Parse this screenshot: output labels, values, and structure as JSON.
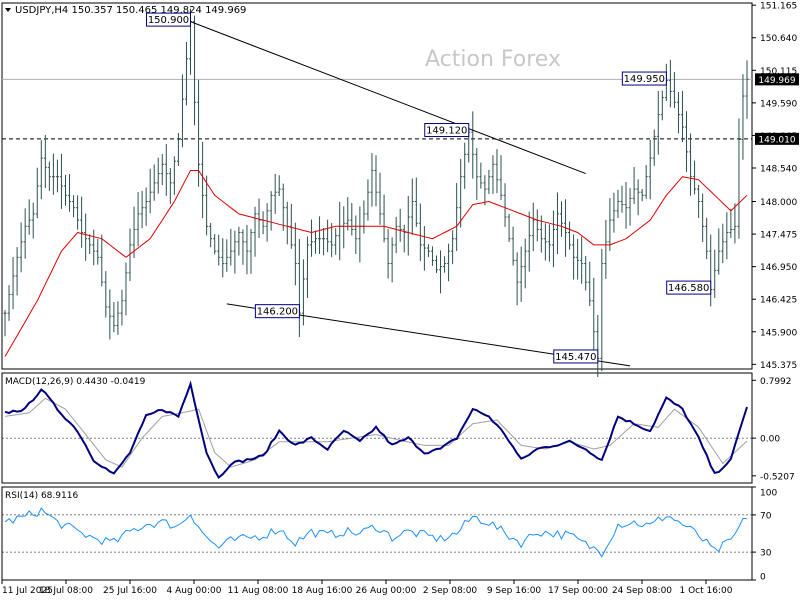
{
  "chart_data": [
    {
      "type": "line",
      "panel": "price",
      "title": "USDJPY,H4 150.357 150.465 149.824 149.969",
      "watermark": "Action Forex",
      "y_ticks": [
        "151.165",
        "150.640",
        "150.115",
        "149.590",
        "149.065",
        "148.540",
        "148.000",
        "147.475",
        "146.950",
        "146.425",
        "145.900",
        "145.375"
      ],
      "ylim": [
        145.3,
        151.2
      ],
      "current_price": "149.969",
      "reference_level": "149.010",
      "annotations": [
        {
          "label": "150.900",
          "index": 46,
          "value": 150.9
        },
        {
          "label": "149.120",
          "index": 115,
          "value": 149.12
        },
        {
          "label": "149.950",
          "index": 164,
          "value": 149.95
        },
        {
          "label": "146.200",
          "index": 73,
          "value": 146.2
        },
        {
          "label": "145.470",
          "index": 147,
          "value": 145.47
        },
        {
          "label": "146.580",
          "index": 175,
          "value": 146.58
        }
      ],
      "trendlines": [
        {
          "from": [
            46,
            150.9
          ],
          "to": [
            144,
            148.45
          ]
        },
        {
          "from": [
            55,
            146.35
          ],
          "to": [
            155,
            145.35
          ]
        }
      ],
      "series": [
        {
          "role": "price",
          "color": "#2f4f4f"
        },
        {
          "role": "moving_average",
          "color": "#e00000"
        }
      ],
      "anchors": [
        [
          0,
          146.2
        ],
        [
          3,
          147.1
        ],
        [
          5,
          147.6
        ],
        [
          7,
          147.8
        ],
        [
          9,
          148.7
        ],
        [
          11,
          148.4
        ],
        [
          13,
          148.4
        ],
        [
          15,
          148.1
        ],
        [
          17,
          147.9
        ],
        [
          19,
          147.5
        ],
        [
          21,
          147.3
        ],
        [
          23,
          147.1
        ],
        [
          25,
          146.3
        ],
        [
          27,
          146.0
        ],
        [
          29,
          146.4
        ],
        [
          31,
          147.3
        ],
        [
          33,
          147.8
        ],
        [
          35,
          148.0
        ],
        [
          37,
          148.3
        ],
        [
          39,
          148.6
        ],
        [
          41,
          148.3
        ],
        [
          43,
          149.0
        ],
        [
          45,
          150.3
        ],
        [
          46,
          150.9
        ],
        [
          47,
          149.6
        ],
        [
          48,
          148.6
        ],
        [
          50,
          147.6
        ],
        [
          52,
          147.2
        ],
        [
          54,
          147.0
        ],
        [
          56,
          147.2
        ],
        [
          58,
          147.5
        ],
        [
          60,
          147.2
        ],
        [
          62,
          147.8
        ],
        [
          64,
          147.6
        ],
        [
          66,
          148.1
        ],
        [
          68,
          148.2
        ],
        [
          70,
          147.6
        ],
        [
          72,
          147.0
        ],
        [
          73,
          146.2
        ],
        [
          75,
          147.3
        ],
        [
          77,
          147.4
        ],
        [
          79,
          147.4
        ],
        [
          81,
          147.3
        ],
        [
          83,
          147.6
        ],
        [
          85,
          147.7
        ],
        [
          87,
          147.4
        ],
        [
          89,
          147.8
        ],
        [
          91,
          148.5
        ],
        [
          93,
          147.8
        ],
        [
          95,
          147.0
        ],
        [
          97,
          147.6
        ],
        [
          99,
          147.5
        ],
        [
          101,
          148.0
        ],
        [
          103,
          147.3
        ],
        [
          105,
          147.2
        ],
        [
          107,
          146.9
        ],
        [
          109,
          147.0
        ],
        [
          111,
          147.4
        ],
        [
          113,
          148.4
        ],
        [
          115,
          149.12
        ],
        [
          117,
          148.4
        ],
        [
          119,
          148.2
        ],
        [
          121,
          148.6
        ],
        [
          123,
          148.1
        ],
        [
          125,
          147.4
        ],
        [
          127,
          146.7
        ],
        [
          129,
          147.2
        ],
        [
          131,
          147.7
        ],
        [
          133,
          147.4
        ],
        [
          135,
          147.3
        ],
        [
          137,
          147.8
        ],
        [
          139,
          147.5
        ],
        [
          141,
          147.1
        ],
        [
          143,
          147.0
        ],
        [
          145,
          146.4
        ],
        [
          146,
          145.9
        ],
        [
          147,
          145.47
        ],
        [
          148,
          147.0
        ],
        [
          150,
          147.7
        ],
        [
          152,
          148.0
        ],
        [
          154,
          147.9
        ],
        [
          156,
          148.2
        ],
        [
          158,
          148.1
        ],
        [
          160,
          148.7
        ],
        [
          162,
          149.4
        ],
        [
          164,
          149.95
        ],
        [
          166,
          149.6
        ],
        [
          168,
          149.2
        ],
        [
          170,
          148.4
        ],
        [
          172,
          148.0
        ],
        [
          174,
          147.2
        ],
        [
          175,
          146.58
        ],
        [
          177,
          147.2
        ],
        [
          179,
          147.5
        ],
        [
          181,
          147.6
        ],
        [
          182,
          149.0
        ],
        [
          183,
          149.7
        ],
        [
          184,
          149.97
        ]
      ],
      "ma_anchors": [
        [
          0,
          145.5
        ],
        [
          8,
          146.4
        ],
        [
          14,
          147.2
        ],
        [
          18,
          147.5
        ],
        [
          24,
          147.4
        ],
        [
          30,
          147.1
        ],
        [
          36,
          147.4
        ],
        [
          42,
          148.0
        ],
        [
          46,
          148.5
        ],
        [
          48,
          148.5
        ],
        [
          52,
          148.1
        ],
        [
          58,
          147.8
        ],
        [
          64,
          147.7
        ],
        [
          70,
          147.6
        ],
        [
          76,
          147.5
        ],
        [
          82,
          147.6
        ],
        [
          88,
          147.6
        ],
        [
          94,
          147.6
        ],
        [
          100,
          147.5
        ],
        [
          106,
          147.4
        ],
        [
          112,
          147.6
        ],
        [
          116,
          147.95
        ],
        [
          120,
          148.0
        ],
        [
          126,
          147.85
        ],
        [
          132,
          147.7
        ],
        [
          138,
          147.6
        ],
        [
          142,
          147.5
        ],
        [
          146,
          147.3
        ],
        [
          150,
          147.3
        ],
        [
          154,
          147.4
        ],
        [
          160,
          147.7
        ],
        [
          164,
          148.1
        ],
        [
          168,
          148.4
        ],
        [
          172,
          148.35
        ],
        [
          176,
          148.1
        ],
        [
          180,
          147.85
        ],
        [
          184,
          148.1
        ]
      ]
    },
    {
      "type": "line",
      "panel": "macd",
      "title": "MACD(12,26,9) 0.4430 -0.0419",
      "y_ticks": [
        "0.7992",
        "0.00",
        "-0.5207"
      ],
      "ylim": [
        -0.62,
        0.9
      ],
      "series": [
        {
          "role": "macd",
          "color": "#000080"
        },
        {
          "role": "signal",
          "color": "#a0a0a0"
        }
      ],
      "anchors": [
        [
          0,
          0.35
        ],
        [
          5,
          0.4
        ],
        [
          9,
          0.68
        ],
        [
          13,
          0.4
        ],
        [
          18,
          0.1
        ],
        [
          22,
          -0.3
        ],
        [
          27,
          -0.5
        ],
        [
          31,
          -0.2
        ],
        [
          35,
          0.3
        ],
        [
          39,
          0.4
        ],
        [
          43,
          0.3
        ],
        [
          46,
          0.75
        ],
        [
          50,
          -0.2
        ],
        [
          53,
          -0.55
        ],
        [
          56,
          -0.35
        ],
        [
          60,
          -0.3
        ],
        [
          64,
          -0.25
        ],
        [
          68,
          0.1
        ],
        [
          72,
          -0.1
        ],
        [
          76,
          0.0
        ],
        [
          80,
          -0.15
        ],
        [
          84,
          0.1
        ],
        [
          88,
          -0.05
        ],
        [
          92,
          0.15
        ],
        [
          96,
          -0.1
        ],
        [
          100,
          0.0
        ],
        [
          104,
          -0.2
        ],
        [
          108,
          -0.15
        ],
        [
          112,
          0.0
        ],
        [
          116,
          0.4
        ],
        [
          120,
          0.3
        ],
        [
          124,
          0.05
        ],
        [
          128,
          -0.3
        ],
        [
          132,
          -0.15
        ],
        [
          136,
          -0.1
        ],
        [
          140,
          -0.05
        ],
        [
          144,
          -0.15
        ],
        [
          148,
          -0.3
        ],
        [
          152,
          0.3
        ],
        [
          156,
          0.2
        ],
        [
          160,
          0.1
        ],
        [
          164,
          0.55
        ],
        [
          168,
          0.4
        ],
        [
          172,
          0.0
        ],
        [
          176,
          -0.5
        ],
        [
          180,
          -0.3
        ],
        [
          184,
          0.44
        ]
      ],
      "signal_anchors": [
        [
          0,
          0.3
        ],
        [
          6,
          0.35
        ],
        [
          10,
          0.55
        ],
        [
          15,
          0.4
        ],
        [
          20,
          0.05
        ],
        [
          25,
          -0.3
        ],
        [
          29,
          -0.4
        ],
        [
          34,
          0.0
        ],
        [
          39,
          0.3
        ],
        [
          44,
          0.35
        ],
        [
          48,
          0.4
        ],
        [
          52,
          -0.2
        ],
        [
          56,
          -0.4
        ],
        [
          62,
          -0.3
        ],
        [
          68,
          -0.05
        ],
        [
          74,
          -0.05
        ],
        [
          80,
          -0.05
        ],
        [
          86,
          0.0
        ],
        [
          92,
          0.05
        ],
        [
          98,
          -0.03
        ],
        [
          104,
          -0.1
        ],
        [
          110,
          -0.1
        ],
        [
          116,
          0.2
        ],
        [
          122,
          0.25
        ],
        [
          128,
          -0.1
        ],
        [
          134,
          -0.15
        ],
        [
          140,
          -0.05
        ],
        [
          146,
          -0.15
        ],
        [
          150,
          -0.1
        ],
        [
          156,
          0.2
        ],
        [
          162,
          0.15
        ],
        [
          166,
          0.4
        ],
        [
          172,
          0.15
        ],
        [
          178,
          -0.35
        ],
        [
          184,
          -0.04
        ]
      ]
    },
    {
      "type": "line",
      "panel": "rsi",
      "title": "RSI(14) 68.9116",
      "y_ticks": [
        "100",
        "70",
        "30",
        "0"
      ],
      "ylim": [
        0,
        100
      ],
      "levels": [
        70,
        30
      ],
      "series": [
        {
          "role": "rsi",
          "color": "#1e90ff"
        }
      ],
      "anchors": [
        [
          0,
          62
        ],
        [
          5,
          68
        ],
        [
          9,
          75
        ],
        [
          13,
          62
        ],
        [
          18,
          52
        ],
        [
          22,
          45
        ],
        [
          27,
          40
        ],
        [
          31,
          52
        ],
        [
          35,
          60
        ],
        [
          39,
          62
        ],
        [
          43,
          58
        ],
        [
          46,
          72
        ],
        [
          50,
          45
        ],
        [
          53,
          35
        ],
        [
          56,
          42
        ],
        [
          60,
          45
        ],
        [
          64,
          48
        ],
        [
          68,
          55
        ],
        [
          72,
          40
        ],
        [
          76,
          52
        ],
        [
          80,
          48
        ],
        [
          84,
          52
        ],
        [
          88,
          50
        ],
        [
          92,
          58
        ],
        [
          96,
          46
        ],
        [
          100,
          52
        ],
        [
          104,
          48
        ],
        [
          108,
          44
        ],
        [
          112,
          50
        ],
        [
          116,
          68
        ],
        [
          120,
          62
        ],
        [
          124,
          50
        ],
        [
          128,
          40
        ],
        [
          132,
          52
        ],
        [
          136,
          50
        ],
        [
          140,
          48
        ],
        [
          144,
          38
        ],
        [
          148,
          30
        ],
        [
          152,
          60
        ],
        [
          156,
          62
        ],
        [
          160,
          58
        ],
        [
          164,
          70
        ],
        [
          168,
          60
        ],
        [
          172,
          48
        ],
        [
          176,
          30
        ],
        [
          180,
          42
        ],
        [
          184,
          69
        ]
      ]
    }
  ],
  "x_axis": {
    "labels": [
      "11 Jul 2025",
      "18 Jul 08:00",
      "25 Jul 16:00",
      "4 Aug 00:00",
      "11 Aug 08:00",
      "18 Aug 16:00",
      "26 Aug 00:00",
      "2 Sep 08:00",
      "9 Sep 16:00",
      "17 Sep 00:00",
      "24 Sep 08:00",
      "1 Oct 16:00"
    ]
  },
  "colors": {
    "price": "#2f4f4f",
    "ma": "#e00000",
    "macd": "#000080",
    "signal": "#a0a0a0",
    "rsi": "#1e90ff",
    "label_border": "#000080",
    "watermark": "#c8c8c8"
  }
}
